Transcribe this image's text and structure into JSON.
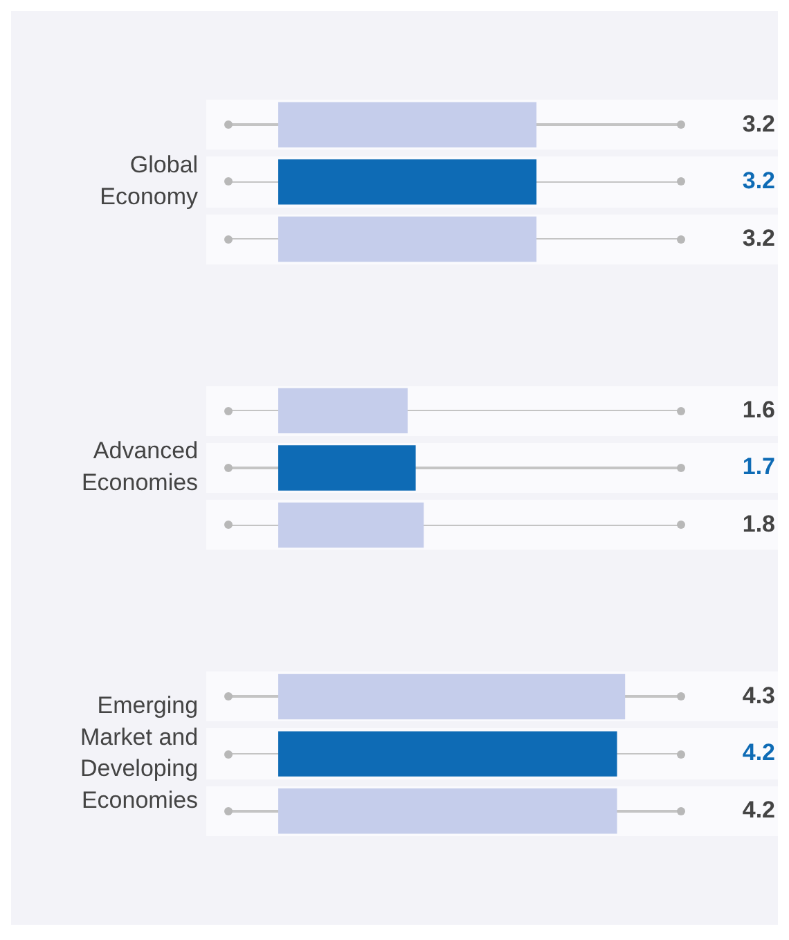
{
  "chart_data": {
    "type": "bar",
    "orientation": "horizontal",
    "categories": [
      null,
      "Global Economy",
      null,
      null,
      null,
      null,
      "Advanced Economies",
      null,
      null,
      null,
      null,
      "Emerging Market and Developing Economies",
      null
    ],
    "values": [
      3.2,
      3.2,
      3.2,
      null,
      null,
      1.6,
      1.7,
      1.8,
      null,
      null,
      4.3,
      4.2,
      4.2
    ],
    "colors": [
      "#c5cdeb",
      "#0e6bb5",
      "#c5cdeb",
      "#c5cdeb",
      "#c5cdeb",
      "#c5cdeb",
      "#0e6bb5",
      "#c5cdeb",
      "#c5cdeb",
      "#c5cdeb",
      "#c5cdeb",
      "#0e6bb5",
      "#c5cdeb"
    ],
    "data_labels": true,
    "tick_labels": "y"
  }
}
